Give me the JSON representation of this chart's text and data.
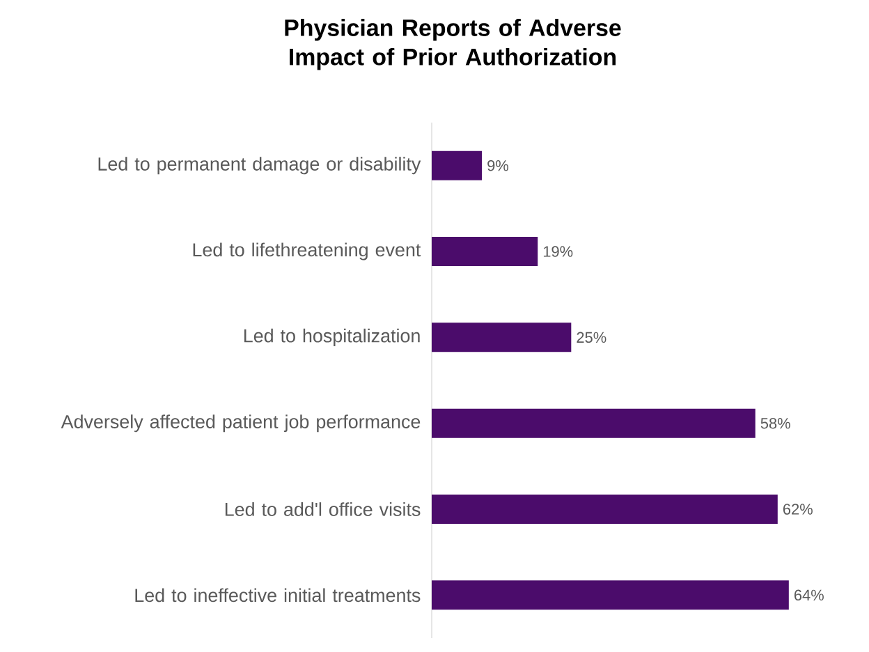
{
  "chart_data": {
    "type": "bar",
    "orientation": "horizontal",
    "title": "Physician Reports of Adverse Impact of Prior Authorization",
    "categories": [
      "Led to permanent damage or disability",
      "Led to lifethreatening event",
      "Led to hospitalization",
      "Adversely affected patient job performance",
      "Led to add'l office visits",
      "Led to ineffective initial treatments"
    ],
    "values": [
      9,
      19,
      25,
      58,
      62,
      64
    ],
    "value_labels": [
      "9%",
      "19%",
      "25%",
      "58%",
      "62%",
      "64%"
    ],
    "color": "#4b0c6b"
  }
}
